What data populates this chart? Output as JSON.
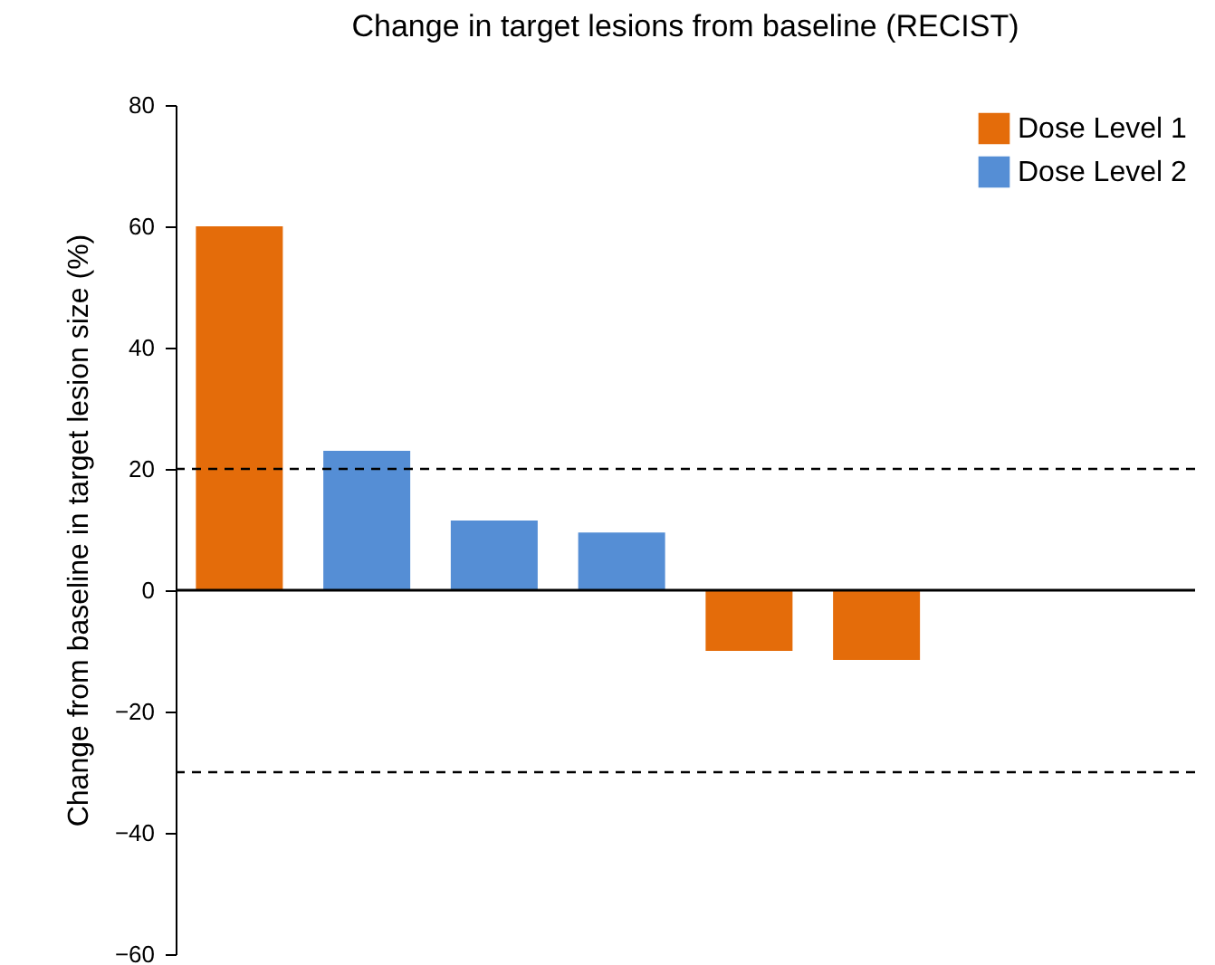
{
  "chart_data": {
    "type": "bar",
    "title": "Change in target lesions from baseline (RECIST)",
    "ylabel": "Change from baseline in target lesion size (%)",
    "categories": [
      null,
      null,
      null,
      null,
      null,
      null,
      null,
      null
    ],
    "series": [
      {
        "name": "Dose Level 1",
        "color": "#e46c0a",
        "values": [
          60,
          null,
          null,
          null,
          -10,
          -11.5,
          null,
          null
        ]
      },
      {
        "name": "Dose Level 2",
        "color": "#558ed5",
        "values": [
          null,
          23,
          11.5,
          9.5,
          null,
          null,
          null,
          null
        ]
      }
    ],
    "ylim": [
      -60,
      80
    ],
    "yticks": [
      -60,
      -40,
      -20,
      0,
      20,
      40,
      60,
      80
    ],
    "ref_lines": [
      {
        "axis": "y",
        "value": 20,
        "line_style": "dashed"
      },
      {
        "axis": "y",
        "value": -30,
        "line_style": "dashed"
      }
    ],
    "legend": "top right",
    "grid": false
  }
}
